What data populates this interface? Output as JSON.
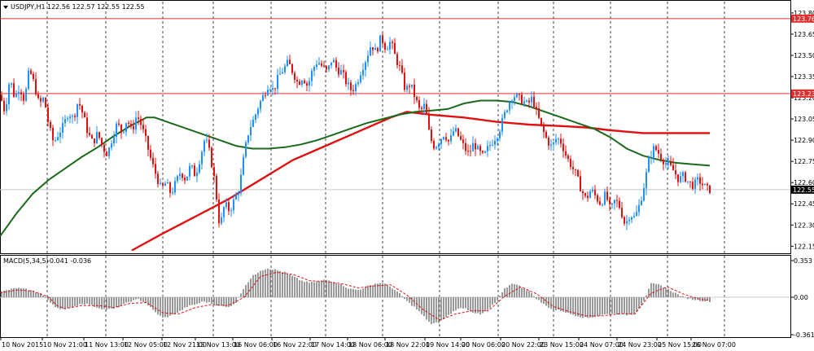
{
  "header": {
    "symbol_label": "USDJPY,H1",
    "ohlc_label": "122.56 122.57 122.55 122.55"
  },
  "macd_header": {
    "label": "MACD(5,34,5)",
    "values_label": "-0.041 -0.036"
  },
  "price_axis": {
    "ticks": [
      "123.80",
      "123.65",
      "123.50",
      "123.35",
      "123.20",
      "123.05",
      "122.90",
      "122.75",
      "122.60",
      "122.45",
      "122.30",
      "122.15"
    ],
    "range": [
      122.1,
      123.88
    ]
  },
  "macd_axis": {
    "ticks": [
      "0.353",
      "0.00",
      "-0.361"
    ],
    "range": [
      -0.361,
      0.353
    ]
  },
  "horizontal_lines": [
    {
      "value": 123.76,
      "label": "123.76",
      "color": "#e03030"
    },
    {
      "value": 123.23,
      "label": "123.23",
      "color": "#e03030"
    }
  ],
  "current_price": {
    "value": 122.55,
    "label": "122.55"
  },
  "time_axis": {
    "labels": [
      "10 Nov 2015",
      "10 Nov 21:00",
      "11 Nov 13:00",
      "12 Nov 05:00",
      "12 Nov 21:00",
      "13 Nov 13:00",
      "16 Nov 06:00",
      "16 Nov 22:00",
      "17 Nov 14:00",
      "18 Nov 06:00",
      "18 Nov 22:00",
      "19 Nov 14:00",
      "20 Nov 06:00",
      "20 Nov 22:00",
      "23 Nov 15:00",
      "24 Nov 07:00",
      "24 Nov 23:00",
      "25 Nov 15:00",
      "26 Nov 07:00"
    ]
  },
  "colors": {
    "bull": "#1e90ff",
    "bear": "#e01010",
    "ma_fast": "#1a6a1a",
    "ma_slow": "#e01010",
    "grid": "#444444",
    "macd_hist": "#808080",
    "macd_signal": "#e01010"
  },
  "chart_data": [
    {
      "type": "candlestick",
      "title": "USDJPY,H1",
      "y_range": [
        122.1,
        123.88
      ],
      "price_points": [
        [
          0,
          123.22
        ],
        [
          6,
          123.1
        ],
        [
          12,
          123.34
        ],
        [
          18,
          123.2
        ],
        [
          24,
          123.28
        ],
        [
          30,
          123.18
        ],
        [
          36,
          123.4
        ],
        [
          42,
          123.3
        ],
        [
          48,
          123.15
        ],
        [
          54,
          123.2
        ],
        [
          60,
          123.0
        ],
        [
          66,
          122.88
        ],
        [
          72,
          122.95
        ],
        [
          78,
          123.0
        ],
        [
          84,
          123.1
        ],
        [
          90,
          123.05
        ],
        [
          96,
          123.18
        ],
        [
          102,
          123.08
        ],
        [
          108,
          122.95
        ],
        [
          114,
          122.88
        ],
        [
          120,
          122.95
        ],
        [
          126,
          122.85
        ],
        [
          132,
          122.8
        ],
        [
          138,
          122.92
        ],
        [
          144,
          123.02
        ],
        [
          150,
          122.95
        ],
        [
          156,
          123.05
        ],
        [
          162,
          122.96
        ],
        [
          168,
          123.08
        ],
        [
          174,
          123.0
        ],
        [
          180,
          122.88
        ],
        [
          186,
          122.75
        ],
        [
          192,
          122.65
        ],
        [
          198,
          122.55
        ],
        [
          204,
          122.6
        ],
        [
          210,
          122.52
        ],
        [
          216,
          122.6
        ],
        [
          222,
          122.68
        ],
        [
          228,
          122.62
        ],
        [
          234,
          122.72
        ],
        [
          240,
          122.65
        ],
        [
          246,
          122.78
        ],
        [
          252,
          122.92
        ],
        [
          258,
          122.8
        ],
        [
          264,
          122.6
        ],
        [
          270,
          122.28
        ],
        [
          276,
          122.45
        ],
        [
          282,
          122.4
        ],
        [
          288,
          122.48
        ],
        [
          294,
          122.56
        ],
        [
          300,
          122.8
        ],
        [
          306,
          122.98
        ],
        [
          312,
          123.05
        ],
        [
          318,
          123.15
        ],
        [
          324,
          123.22
        ],
        [
          330,
          123.3
        ],
        [
          336,
          123.25
        ],
        [
          342,
          123.35
        ],
        [
          348,
          123.4
        ],
        [
          354,
          123.45
        ],
        [
          360,
          123.38
        ],
        [
          366,
          123.3
        ],
        [
          372,
          123.35
        ],
        [
          378,
          123.28
        ],
        [
          384,
          123.4
        ],
        [
          390,
          123.46
        ],
        [
          396,
          123.42
        ],
        [
          402,
          123.38
        ],
        [
          408,
          123.48
        ],
        [
          414,
          123.4
        ],
        [
          420,
          123.38
        ],
        [
          426,
          123.3
        ],
        [
          432,
          123.25
        ],
        [
          438,
          123.3
        ],
        [
          444,
          123.4
        ],
        [
          450,
          123.48
        ],
        [
          456,
          123.58
        ],
        [
          462,
          123.52
        ],
        [
          468,
          123.63
        ],
        [
          474,
          123.55
        ],
        [
          480,
          123.6
        ],
        [
          486,
          123.48
        ],
        [
          492,
          123.4
        ],
        [
          498,
          123.25
        ],
        [
          504,
          123.3
        ],
        [
          510,
          123.2
        ],
        [
          516,
          123.1
        ],
        [
          522,
          123.15
        ],
        [
          528,
          122.92
        ],
        [
          534,
          122.85
        ],
        [
          540,
          122.9
        ],
        [
          546,
          122.95
        ],
        [
          552,
          122.88
        ],
        [
          558,
          122.98
        ],
        [
          564,
          122.92
        ],
        [
          570,
          122.85
        ],
        [
          576,
          122.8
        ],
        [
          582,
          122.88
        ],
        [
          588,
          122.82
        ],
        [
          594,
          122.78
        ],
        [
          600,
          122.85
        ],
        [
          606,
          122.9
        ],
        [
          612,
          122.95
        ],
        [
          618,
          123.05
        ],
        [
          624,
          123.15
        ],
        [
          630,
          123.22
        ],
        [
          636,
          123.2
        ],
        [
          642,
          123.18
        ],
        [
          648,
          123.15
        ],
        [
          654,
          123.2
        ],
        [
          660,
          123.08
        ],
        [
          666,
          122.98
        ],
        [
          672,
          122.9
        ],
        [
          678,
          122.85
        ],
        [
          684,
          122.92
        ],
        [
          690,
          122.88
        ],
        [
          696,
          122.78
        ],
        [
          702,
          122.72
        ],
        [
          708,
          122.65
        ],
        [
          714,
          122.55
        ],
        [
          720,
          122.48
        ],
        [
          726,
          122.55
        ],
        [
          732,
          122.5
        ],
        [
          738,
          122.45
        ],
        [
          744,
          122.52
        ],
        [
          750,
          122.4
        ],
        [
          756,
          122.48
        ],
        [
          762,
          122.42
        ],
        [
          768,
          122.3
        ],
        [
          774,
          122.38
        ],
        [
          780,
          122.35
        ],
        [
          786,
          122.45
        ],
        [
          792,
          122.6
        ],
        [
          798,
          122.78
        ],
        [
          804,
          122.85
        ],
        [
          810,
          122.8
        ],
        [
          816,
          122.75
        ],
        [
          822,
          122.72
        ],
        [
          828,
          122.68
        ],
        [
          834,
          122.62
        ],
        [
          840,
          122.65
        ],
        [
          846,
          122.6
        ],
        [
          852,
          122.58
        ],
        [
          858,
          122.62
        ],
        [
          864,
          122.58
        ],
        [
          870,
          122.55
        ]
      ],
      "ma_fast_points": [
        [
          0,
          122.22
        ],
        [
          20,
          122.38
        ],
        [
          40,
          122.52
        ],
        [
          60,
          122.62
        ],
        [
          80,
          122.7
        ],
        [
          100,
          122.78
        ],
        [
          120,
          122.85
        ],
        [
          140,
          122.93
        ],
        [
          160,
          123.0
        ],
        [
          180,
          123.06
        ],
        [
          190,
          123.06
        ],
        [
          210,
          123.02
        ],
        [
          230,
          122.98
        ],
        [
          250,
          122.94
        ],
        [
          270,
          122.9
        ],
        [
          290,
          122.86
        ],
        [
          310,
          122.84
        ],
        [
          330,
          122.84
        ],
        [
          350,
          122.85
        ],
        [
          370,
          122.87
        ],
        [
          390,
          122.9
        ],
        [
          410,
          122.94
        ],
        [
          430,
          122.98
        ],
        [
          450,
          123.02
        ],
        [
          470,
          123.05
        ],
        [
          490,
          123.08
        ],
        [
          510,
          123.1
        ],
        [
          530,
          123.11
        ],
        [
          550,
          123.12
        ],
        [
          570,
          123.16
        ],
        [
          590,
          123.18
        ],
        [
          610,
          123.18
        ],
        [
          630,
          123.17
        ],
        [
          650,
          123.14
        ],
        [
          670,
          123.1
        ],
        [
          690,
          123.06
        ],
        [
          710,
          123.02
        ],
        [
          730,
          122.98
        ],
        [
          750,
          122.92
        ],
        [
          770,
          122.84
        ],
        [
          790,
          122.79
        ],
        [
          810,
          122.76
        ],
        [
          830,
          122.74
        ],
        [
          850,
          122.73
        ],
        [
          872,
          122.72
        ]
      ],
      "ma_slow_points": [
        [
          162,
          122.12
        ],
        [
          200,
          122.24
        ],
        [
          240,
          122.36
        ],
        [
          280,
          122.48
        ],
        [
          320,
          122.62
        ],
        [
          360,
          122.76
        ],
        [
          400,
          122.86
        ],
        [
          440,
          122.96
        ],
        [
          480,
          123.06
        ],
        [
          500,
          123.1
        ],
        [
          530,
          123.08
        ],
        [
          570,
          123.06
        ],
        [
          610,
          123.03
        ],
        [
          650,
          123.01
        ],
        [
          690,
          123.0
        ],
        [
          720,
          122.99
        ],
        [
          750,
          122.97
        ],
        [
          790,
          122.95
        ],
        [
          830,
          122.95
        ],
        [
          872,
          122.95
        ]
      ]
    },
    {
      "type": "bar",
      "title": "MACD(5,34,5)",
      "y_range": [
        -0.361,
        0.353
      ],
      "histogram_points": [
        [
          0,
          0.05
        ],
        [
          10,
          0.07
        ],
        [
          20,
          0.09
        ],
        [
          30,
          0.08
        ],
        [
          40,
          0.06
        ],
        [
          50,
          0.04
        ],
        [
          60,
          -0.04
        ],
        [
          70,
          -0.1
        ],
        [
          80,
          -0.12
        ],
        [
          90,
          -0.09
        ],
        [
          100,
          -0.06
        ],
        [
          110,
          -0.07
        ],
        [
          120,
          -0.1
        ],
        [
          130,
          -0.12
        ],
        [
          140,
          -0.11
        ],
        [
          150,
          -0.08
        ],
        [
          160,
          -0.04
        ],
        [
          170,
          -0.02
        ],
        [
          180,
          -0.06
        ],
        [
          190,
          -0.14
        ],
        [
          200,
          -0.2
        ],
        [
          210,
          -0.18
        ],
        [
          220,
          -0.14
        ],
        [
          230,
          -0.09
        ],
        [
          240,
          -0.07
        ],
        [
          250,
          -0.04
        ],
        [
          260,
          -0.06
        ],
        [
          270,
          -0.08
        ],
        [
          280,
          -0.1
        ],
        [
          290,
          -0.05
        ],
        [
          300,
          0.1
        ],
        [
          310,
          0.2
        ],
        [
          320,
          0.26
        ],
        [
          330,
          0.28
        ],
        [
          340,
          0.26
        ],
        [
          350,
          0.24
        ],
        [
          360,
          0.2
        ],
        [
          370,
          0.16
        ],
        [
          380,
          0.14
        ],
        [
          390,
          0.15
        ],
        [
          400,
          0.17
        ],
        [
          410,
          0.15
        ],
        [
          420,
          0.12
        ],
        [
          430,
          0.08
        ],
        [
          440,
          0.07
        ],
        [
          450,
          0.1
        ],
        [
          460,
          0.13
        ],
        [
          470,
          0.14
        ],
        [
          480,
          0.1
        ],
        [
          490,
          0.04
        ],
        [
          500,
          -0.04
        ],
        [
          510,
          -0.1
        ],
        [
          520,
          -0.18
        ],
        [
          530,
          -0.26
        ],
        [
          540,
          -0.24
        ],
        [
          550,
          -0.18
        ],
        [
          560,
          -0.12
        ],
        [
          570,
          -0.1
        ],
        [
          580,
          -0.14
        ],
        [
          590,
          -0.17
        ],
        [
          600,
          -0.12
        ],
        [
          610,
          -0.04
        ],
        [
          620,
          0.08
        ],
        [
          630,
          0.14
        ],
        [
          640,
          0.1
        ],
        [
          650,
          0.06
        ],
        [
          660,
          -0.02
        ],
        [
          670,
          -0.08
        ],
        [
          680,
          -0.12
        ],
        [
          690,
          -0.13
        ],
        [
          700,
          -0.16
        ],
        [
          710,
          -0.18
        ],
        [
          720,
          -0.2
        ],
        [
          730,
          -0.19
        ],
        [
          740,
          -0.17
        ],
        [
          750,
          -0.16
        ],
        [
          760,
          -0.16
        ],
        [
          770,
          -0.17
        ],
        [
          780,
          -0.16
        ],
        [
          790,
          -0.05
        ],
        [
          800,
          0.13
        ],
        [
          810,
          0.12
        ],
        [
          820,
          0.08
        ],
        [
          830,
          0.04
        ],
        [
          840,
          0.0
        ],
        [
          850,
          -0.02
        ],
        [
          860,
          -0.03
        ],
        [
          870,
          -0.04
        ]
      ],
      "signal_points": [
        [
          0,
          0.04
        ],
        [
          20,
          0.07
        ],
        [
          40,
          0.06
        ],
        [
          60,
          0.0
        ],
        [
          70,
          -0.08
        ],
        [
          80,
          -0.11
        ],
        [
          100,
          -0.08
        ],
        [
          120,
          -0.08
        ],
        [
          140,
          -0.1
        ],
        [
          160,
          -0.06
        ],
        [
          180,
          -0.05
        ],
        [
          200,
          -0.15
        ],
        [
          220,
          -0.16
        ],
        [
          240,
          -0.1
        ],
        [
          260,
          -0.07
        ],
        [
          280,
          -0.08
        ],
        [
          300,
          0.0
        ],
        [
          320,
          0.2
        ],
        [
          340,
          0.24
        ],
        [
          360,
          0.22
        ],
        [
          380,
          0.16
        ],
        [
          400,
          0.15
        ],
        [
          420,
          0.13
        ],
        [
          440,
          0.09
        ],
        [
          460,
          0.11
        ],
        [
          480,
          0.12
        ],
        [
          500,
          0.02
        ],
        [
          520,
          -0.12
        ],
        [
          540,
          -0.22
        ],
        [
          560,
          -0.16
        ],
        [
          580,
          -0.13
        ],
        [
          600,
          -0.13
        ],
        [
          620,
          0.01
        ],
        [
          640,
          0.1
        ],
        [
          660,
          0.03
        ],
        [
          680,
          -0.09
        ],
        [
          700,
          -0.14
        ],
        [
          720,
          -0.18
        ],
        [
          740,
          -0.18
        ],
        [
          760,
          -0.16
        ],
        [
          780,
          -0.16
        ],
        [
          800,
          0.04
        ],
        [
          820,
          0.1
        ],
        [
          840,
          0.03
        ],
        [
          860,
          -0.02
        ],
        [
          872,
          -0.03
        ]
      ]
    }
  ]
}
